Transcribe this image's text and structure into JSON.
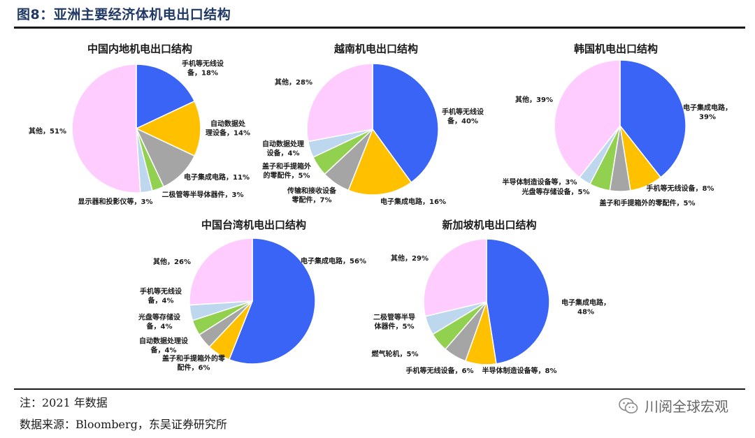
{
  "figure_title": "图8：亚洲主要经济体机电出口结构",
  "note": "注：2021 年数据",
  "source": "数据来源：Bloomberg，东吴证券研究所",
  "watermark": "川阅全球宏观",
  "colors": {
    "blue": "#3a64f5",
    "orange": "#ffc000",
    "gray": "#a5a5a5",
    "green": "#92d050",
    "lightblue": "#bdd7ee",
    "pink": "#ffccff"
  },
  "chart_data": [
    {
      "type": "pie",
      "title": "中国内地机电出口结构",
      "slices": [
        {
          "label": [
            "手机等无线设",
            "备，18%"
          ],
          "value": 18,
          "color": "blue"
        },
        {
          "label": [
            "自动数据处",
            "理设备，14%"
          ],
          "value": 14,
          "color": "orange"
        },
        {
          "label": [
            "电子集成电路，11%"
          ],
          "value": 11,
          "color": "gray"
        },
        {
          "label": [
            "二极管等半导体器件，3%"
          ],
          "value": 3,
          "color": "green"
        },
        {
          "label": [
            "显示器和投影仪等，3%"
          ],
          "value": 3,
          "color": "lightblue"
        },
        {
          "label": [
            "其他，51%"
          ],
          "value": 51,
          "color": "pink"
        }
      ]
    },
    {
      "type": "pie",
      "title": "越南机电出口结构",
      "slices": [
        {
          "label": [
            "手机等无线设",
            "备，40%"
          ],
          "value": 40,
          "color": "blue"
        },
        {
          "label": [
            "电子集成电路，16%"
          ],
          "value": 16,
          "color": "orange"
        },
        {
          "label": [
            "传输和接收设备",
            "零配件，7%"
          ],
          "value": 7,
          "color": "gray"
        },
        {
          "label": [
            "盖子和手提箱外",
            "的零配件，5%"
          ],
          "value": 5,
          "color": "green"
        },
        {
          "label": [
            "自动数据处理",
            "设备，4%"
          ],
          "value": 4,
          "color": "lightblue"
        },
        {
          "label": [
            "其他，28%"
          ],
          "value": 28,
          "color": "pink"
        }
      ]
    },
    {
      "type": "pie",
      "title": "韩国机电出口结构",
      "slices": [
        {
          "label": [
            "电子集成电路，",
            "39%"
          ],
          "value": 39,
          "color": "blue"
        },
        {
          "label": [
            "手机等无线设备，8%"
          ],
          "value": 8,
          "color": "orange"
        },
        {
          "label": [
            "盖子和手提箱外的零配件，5%"
          ],
          "value": 5,
          "color": "gray"
        },
        {
          "label": [
            "光盘等存储设备，5%"
          ],
          "value": 5,
          "color": "green"
        },
        {
          "label": [
            "半导体制造设备等，3%"
          ],
          "value": 3,
          "color": "lightblue"
        },
        {
          "label": [
            "其他，39%"
          ],
          "value": 39,
          "color": "pink"
        }
      ]
    },
    {
      "type": "pie",
      "title": "中国台湾机电出口结构",
      "slices": [
        {
          "label": [
            "电子集成电路，56%"
          ],
          "value": 56,
          "color": "blue"
        },
        {
          "label": [
            "盖子和手提箱外的零",
            "配件，6%"
          ],
          "value": 6,
          "color": "orange"
        },
        {
          "label": [
            "自动数据处理设",
            "备，4%"
          ],
          "value": 4,
          "color": "gray"
        },
        {
          "label": [
            "光盘等存储设",
            "备，4%"
          ],
          "value": 4,
          "color": "green"
        },
        {
          "label": [
            "手机等无线设",
            "备，4%"
          ],
          "value": 4,
          "color": "lightblue"
        },
        {
          "label": [
            "其他，26%"
          ],
          "value": 26,
          "color": "pink"
        }
      ]
    },
    {
      "type": "pie",
      "title": "新加坡机电出口结构",
      "slices": [
        {
          "label": [
            "电子集成电路，",
            "48%"
          ],
          "value": 48,
          "color": "blue"
        },
        {
          "label": [
            "半导体制造设备等，8%"
          ],
          "value": 8,
          "color": "orange"
        },
        {
          "label": [
            "手机等无线设备，6%"
          ],
          "value": 6,
          "color": "gray"
        },
        {
          "label": [
            "燃气轮机，5%"
          ],
          "value": 5,
          "color": "green"
        },
        {
          "label": [
            "二极管等半导",
            "体器件，5%"
          ],
          "value": 5,
          "color": "lightblue"
        },
        {
          "label": [
            "其他，29%"
          ],
          "value": 29,
          "color": "pink"
        }
      ]
    }
  ]
}
